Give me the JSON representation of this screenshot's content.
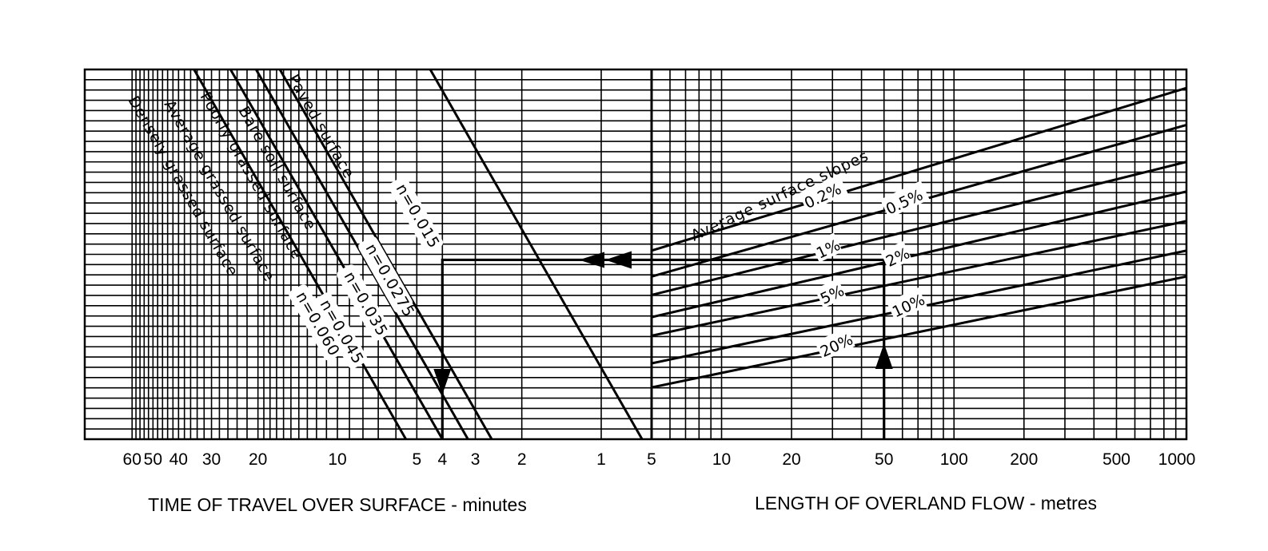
{
  "chart_data": {
    "type": "line",
    "left_panel": {
      "xlabel": "TIME OF TRAVEL OVER SURFACE - minutes",
      "x_scale": "log",
      "x_reversed": true,
      "x_ticks": [
        "60",
        "50",
        "40",
        "30",
        "20",
        "10",
        "5",
        "4",
        "3",
        "2",
        "1"
      ],
      "surfaces": [
        {
          "name": "Paved surface",
          "n_label": "n=0.015",
          "time_at_bottom_min": 0.7
        },
        {
          "name": "Bare soil surface",
          "n_label": "n=0.0275",
          "time_at_bottom_min": 2.6
        },
        {
          "name": "Poorly grassed surface",
          "n_label": "n=0.035",
          "time_at_bottom_min": 3.2
        },
        {
          "name": "Average grassed surface",
          "n_label": "n=0.045",
          "time_at_bottom_min": 4.0
        },
        {
          "name": "Densely grassed surface",
          "n_label": "n=0.060",
          "time_at_bottom_min": 5.5
        }
      ]
    },
    "right_panel": {
      "xlabel": "LENGTH OF OVERLAND FLOW - metres",
      "x_scale": "log",
      "x_range": [
        5,
        1000
      ],
      "x_ticks": [
        "5",
        "10",
        "20",
        "50",
        "100",
        "200",
        "500",
        "1000"
      ],
      "slopes_title": "Average surface slopes",
      "slopes": [
        {
          "label": "0.2%",
          "rel_left": 0.49,
          "rel_right": 0.05
        },
        {
          "label": "0.5%",
          "rel_left": 0.56,
          "rel_right": 0.15
        },
        {
          "label": "1%",
          "rel_left": 0.61,
          "rel_right": 0.25
        },
        {
          "label": "2%",
          "rel_left": 0.67,
          "rel_right": 0.33
        },
        {
          "label": "5%",
          "rel_left": 0.72,
          "rel_right": 0.41
        },
        {
          "label": "10%",
          "rel_left": 0.795,
          "rel_right": 0.49
        },
        {
          "label": "20%",
          "rel_left": 0.86,
          "rel_right": 0.56
        }
      ]
    },
    "worked_example": {
      "length_m": 50,
      "time_min": 4
    }
  }
}
